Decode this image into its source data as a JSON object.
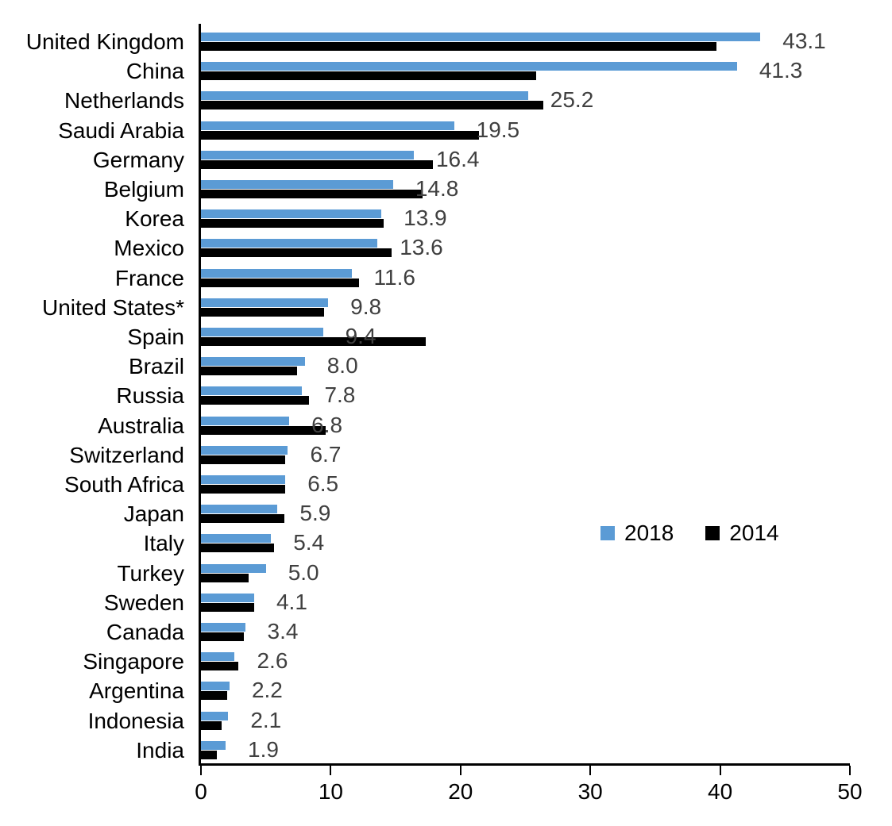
{
  "chart_data": {
    "type": "bar",
    "orientation": "horizontal",
    "title": "",
    "xlabel": "",
    "ylabel": "",
    "xlim": [
      0,
      50
    ],
    "x_ticks": [
      "0",
      "10",
      "20",
      "30",
      "40",
      "50"
    ],
    "grid": false,
    "legend_position": "middle-right",
    "categories": [
      "United Kingdom",
      "China",
      "Netherlands",
      "Saudi Arabia",
      "Germany",
      "Belgium",
      "Korea",
      "Mexico",
      "France",
      "United States*",
      "Spain",
      "Brazil",
      "Russia",
      "Australia",
      "Switzerland",
      "South Africa",
      "Japan",
      "Italy",
      "Turkey",
      "Sweden",
      "Canada",
      "Singapore",
      "Argentina",
      "Indonesia",
      "India"
    ],
    "series": [
      {
        "name": "2018",
        "color": "#5B9BD5",
        "values": [
          43.1,
          41.3,
          25.2,
          19.5,
          16.4,
          14.8,
          13.9,
          13.6,
          11.6,
          9.8,
          9.4,
          8.0,
          7.8,
          6.8,
          6.7,
          6.5,
          5.9,
          5.4,
          5.0,
          4.1,
          3.4,
          2.6,
          2.2,
          2.1,
          1.9
        ]
      },
      {
        "name": "2014",
        "color": "#000000",
        "values": [
          39.7,
          25.8,
          26.4,
          21.4,
          17.9,
          17.1,
          14.1,
          14.7,
          12.2,
          9.5,
          17.3,
          7.4,
          8.3,
          9.6,
          6.5,
          6.5,
          6.4,
          5.6,
          3.7,
          4.1,
          3.3,
          2.9,
          2.0,
          1.6,
          1.2
        ]
      }
    ],
    "data_labels": [
      "43.1",
      "41.3",
      "25.2",
      "19.5",
      "16.4",
      "14.8",
      "13.9",
      "13.6",
      "11.6",
      "9.8",
      "9.4",
      "8.0",
      "7.8",
      "6.8",
      "6.7",
      "6.5",
      "5.9",
      "5.4",
      "5.0",
      "4.1",
      "3.4",
      "2.6",
      "2.2",
      "2.1",
      "1.9"
    ],
    "data_label_color": "#404040"
  }
}
